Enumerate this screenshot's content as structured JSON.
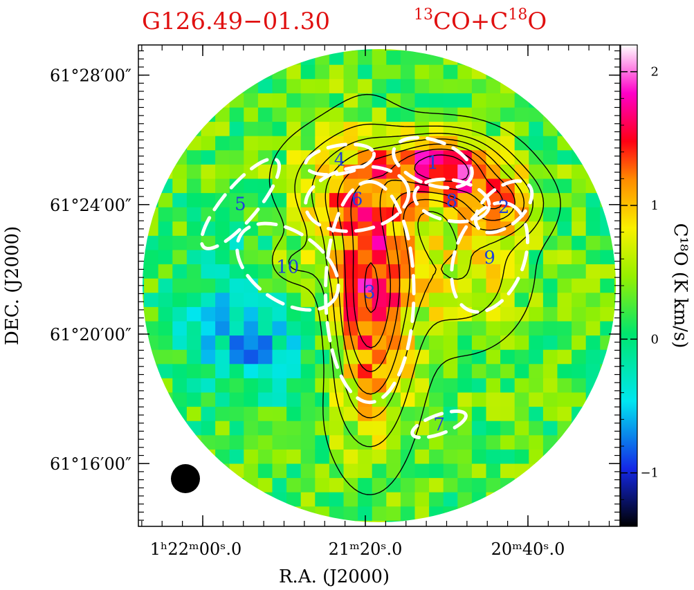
{
  "chart_data": {
    "type": "heatmap",
    "title_left": "G126.49−01.30",
    "title_right": {
      "sup1": "13",
      "mid": "CO+C",
      "sup2": "18",
      "end": "O"
    },
    "xlabel": "R.A. (J2000)",
    "ylabel": "DEC. (J2000)",
    "colorbar_label": "C¹⁸O (K km/s)",
    "x_ticks": [
      {
        "text": "1ʰ22ᵐ00ˢ.0"
      },
      {
        "text": "21ᵐ20ˢ.0"
      },
      {
        "text": "20ᵐ40ˢ.0"
      }
    ],
    "y_ticks": [
      {
        "text": "61°28′00″",
        "value": 28
      },
      {
        "text": "61°24′00″",
        "value": 24
      },
      {
        "text": "61°20′00″",
        "value": 20
      },
      {
        "text": "61°16′00″",
        "value": 16
      }
    ],
    "colorbar_ticks": [
      {
        "text": "2",
        "value": 2
      },
      {
        "text": "1",
        "value": 1
      },
      {
        "text": "0",
        "value": 0
      },
      {
        "text": "−1",
        "value": -1
      }
    ],
    "value_range": [
      -1.4,
      2.2
    ],
    "regions": [
      {
        "label": "1",
        "dx": 3.4,
        "dy": 7.8,
        "a": 2.6,
        "b": 1.4,
        "angle": -20
      },
      {
        "label": "2",
        "dx": 7.9,
        "dy": 5.0,
        "a": 2.1,
        "b": 1.2,
        "angle": 40
      },
      {
        "label": "3",
        "dx": -0.6,
        "dy": -0.4,
        "a": 7.0,
        "b": 2.8,
        "angle": 90
      },
      {
        "label": "4",
        "dx": -2.5,
        "dy": 8.0,
        "a": 2.2,
        "b": 0.9,
        "angle": 10
      },
      {
        "label": "5",
        "dx": -8.8,
        "dy": 5.2,
        "a": 3.6,
        "b": 1.1,
        "angle": 50
      },
      {
        "label": "6",
        "dx": -1.4,
        "dy": 5.5,
        "a": 3.3,
        "b": 2.0,
        "angle": 10
      },
      {
        "label": "7",
        "dx": 3.8,
        "dy": -8.8,
        "a": 1.8,
        "b": 0.6,
        "angle": 20
      },
      {
        "label": "8",
        "dx": 4.6,
        "dy": 5.4,
        "a": 2.4,
        "b": 1.3,
        "angle": -10
      },
      {
        "label": "9",
        "dx": 7.0,
        "dy": 1.8,
        "a": 3.6,
        "b": 2.2,
        "angle": 70
      },
      {
        "label": "10",
        "dx": -5.8,
        "dy": 1.2,
        "a": 3.6,
        "b": 2.2,
        "angle": -35
      }
    ]
  }
}
